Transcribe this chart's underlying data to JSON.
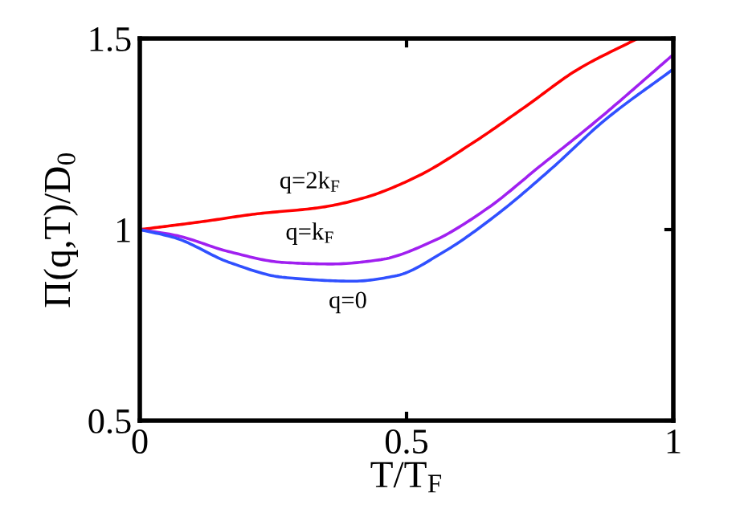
{
  "chart_data": {
    "type": "line",
    "xlabel": "T/T$_{F}$",
    "ylabel": "Π(q,T)/D$_{0}$",
    "xlim": [
      0,
      1
    ],
    "ylim": [
      0.5,
      1.5
    ],
    "xticks": [
      0,
      0.5,
      1
    ],
    "yticks": [
      0.5,
      1,
      1.5
    ],
    "grid": false,
    "legend": false,
    "marker": "none",
    "line_style": "solid",
    "series": [
      {
        "name": "q=2k$_{F}$",
        "color": "#ff0000",
        "x": [
          0,
          0.118,
          0.218,
          0.339,
          0.42,
          0.52,
          0.62,
          0.721,
          0.822,
          0.933
        ],
        "values": [
          1.0,
          1.021,
          1.041,
          1.058,
          1.083,
          1.139,
          1.223,
          1.32,
          1.42,
          1.5
        ]
      },
      {
        "name": "q=k$_{F}$",
        "color": "#a020f0",
        "x": [
          0,
          0.067,
          0.168,
          0.269,
          0.359,
          0.45,
          0.55,
          0.651,
          0.751,
          0.852,
          1
        ],
        "values": [
          1.0,
          0.985,
          0.942,
          0.914,
          0.91,
          0.921,
          0.97,
          1.055,
          1.167,
          1.28,
          1.458
        ]
      },
      {
        "name": "q=0",
        "color": "#3050ff",
        "x": [
          0,
          0.067,
          0.168,
          0.269,
          0.4,
          0.48,
          0.57,
          0.671,
          0.772,
          0.872,
          1
        ],
        "values": [
          1.0,
          0.978,
          0.914,
          0.875,
          0.865,
          0.879,
          0.942,
          1.041,
          1.16,
          1.287,
          1.42
        ]
      }
    ]
  }
}
